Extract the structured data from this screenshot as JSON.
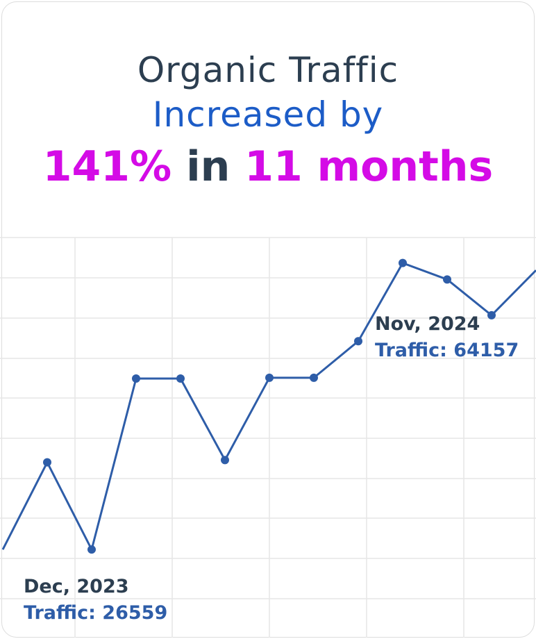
{
  "headline": {
    "line1": "Organic Traffic",
    "line2": "Increased by",
    "percent": "141%",
    "connector": "in",
    "duration": "11 months"
  },
  "annotations": {
    "start": {
      "date": "Dec, 2023",
      "traffic_label": "Traffic: 26559"
    },
    "end": {
      "date": "Nov, 2024",
      "traffic_label": "Traffic: 64157"
    }
  },
  "colors": {
    "title": "#2c3e50",
    "accent_blue": "#1c5cc7",
    "accent_magenta": "#d40be6",
    "line": "#2e5da8",
    "grid": "#e6e6e6"
  },
  "chart_data": {
    "type": "line",
    "title": "",
    "xlabel": "",
    "ylabel": "",
    "grid": true,
    "series": [
      {
        "values": [
          26559,
          38000,
          26559,
          49000,
          49000,
          38300,
          49100,
          49100,
          53900,
          64157,
          62000,
          57300,
          63200
        ]
      }
    ],
    "ylim": [
      15000,
      67500
    ]
  }
}
